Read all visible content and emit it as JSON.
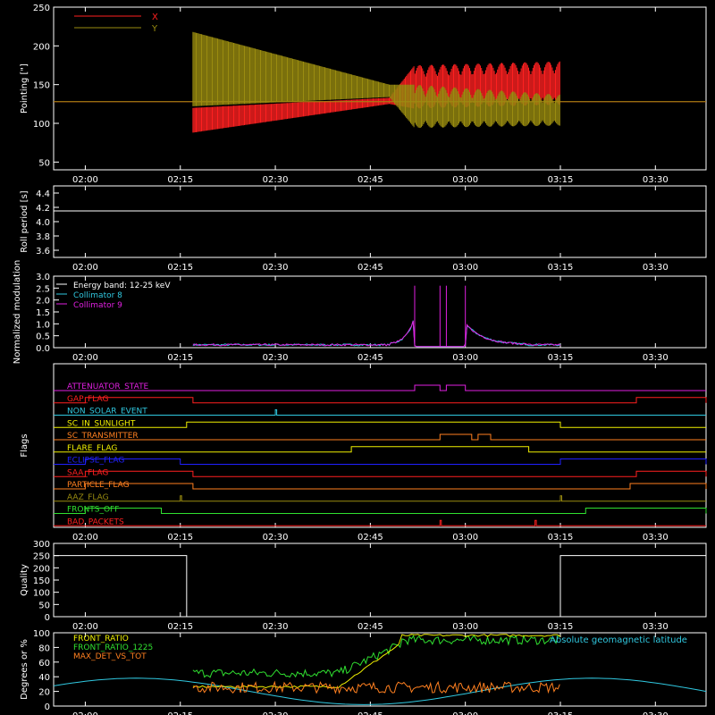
{
  "colors": {
    "bg": "#000000",
    "axis": "#ffffff",
    "red": "#ff2020",
    "olive": "#9a8c10",
    "cyan": "#30c8e0",
    "magenta": "#e020e0",
    "green": "#30e030",
    "yellow": "#f0f000",
    "orange": "#ff8020",
    "blue": "#2020ff",
    "white": "#ffffff"
  },
  "time_ticks": [
    "02:00",
    "02:15",
    "02:30",
    "02:45",
    "03:00",
    "03:15",
    "03:30"
  ],
  "chart_data": [
    {
      "id": "pointing",
      "type": "line",
      "ylabel": "Pointing [\"]",
      "ylim": [
        40,
        250
      ],
      "yticks": [
        "50",
        "100",
        "150",
        "200",
        "250"
      ],
      "legend": [
        "X",
        "Y"
      ],
      "series": [
        {
          "name": "X",
          "color": "red",
          "baseline": 128,
          "envelope": [
            [
              "02:17",
              100,
              20
            ],
            [
              "02:48",
              128,
              5
            ],
            [
              "02:52",
              140,
              35
            ],
            [
              "03:15",
              145,
              35
            ]
          ]
        },
        {
          "name": "Y",
          "color": "olive",
          "baseline": 128,
          "envelope": [
            [
              "02:17",
              158,
              60
            ],
            [
              "02:48",
              140,
              10
            ],
            [
              "02:52",
              115,
              35
            ],
            [
              "03:15",
              112,
              25
            ]
          ]
        }
      ]
    },
    {
      "id": "roll",
      "type": "line",
      "ylabel": "Roll period [s]",
      "ylim": [
        3.5,
        4.5
      ],
      "yticks": [
        "3.6",
        "3.8",
        "4.0",
        "4.2",
        "4.4"
      ],
      "series": [
        {
          "name": "",
          "color": "white",
          "value": 4.15
        }
      ]
    },
    {
      "id": "modulation",
      "type": "line",
      "ylabel": "Normalized modulation",
      "ylim": [
        0,
        3
      ],
      "yticks": [
        "0.0",
        "0.5",
        "1.0",
        "1.5",
        "2.0",
        "2.5",
        "3.0"
      ],
      "legend": [
        "Energy band: 12-25 keV",
        "Collimator 8",
        "Collimator 9"
      ],
      "series": [
        {
          "name": "Collimator 8",
          "color": "cyan"
        },
        {
          "name": "Collimator 9",
          "color": "magenta"
        }
      ]
    },
    {
      "id": "flags",
      "type": "line",
      "ylabel": "Flags",
      "flags": [
        {
          "name": "ATTENUATOR_STATE",
          "color": "magenta",
          "on": [
            [
              "02:52",
              "02:56"
            ],
            [
              "02:57",
              "03:00"
            ]
          ]
        },
        {
          "name": "GAP_FLAG",
          "color": "red",
          "on": [
            [
              "02:00",
              "02:17"
            ],
            [
              "03:27",
              "03:38"
            ]
          ]
        },
        {
          "name": "NON_SOLAR_EVENT",
          "color": "cyan",
          "on": [
            [
              "02:30",
              "02:30"
            ]
          ]
        },
        {
          "name": "SC_IN_SUNLIGHT",
          "color": "yellow",
          "on": [
            [
              "02:16",
              "03:15"
            ]
          ]
        },
        {
          "name": "SC_TRANSMITTER",
          "color": "orange",
          "on": [
            [
              "02:56",
              "03:01"
            ],
            [
              "03:02",
              "03:04"
            ]
          ]
        },
        {
          "name": "FLARE_FLAG",
          "color": "yellow",
          "on": [
            [
              "02:42",
              "03:10"
            ]
          ]
        },
        {
          "name": "ECLIPSE_FLAG",
          "color": "blue",
          "on": [
            [
              "02:00",
              "02:15"
            ],
            [
              "03:15",
              "03:38"
            ]
          ]
        },
        {
          "name": "SAA_FLAG",
          "color": "red",
          "on": [
            [
              "02:00",
              "02:17"
            ],
            [
              "03:27",
              "03:38"
            ]
          ]
        },
        {
          "name": "PARTICLE_FLAG",
          "color": "orange",
          "on": [
            [
              "02:00",
              "02:17"
            ],
            [
              "03:26",
              "03:38"
            ]
          ]
        },
        {
          "name": "AAZ_FLAG",
          "color": "olive",
          "on": [
            [
              "02:15",
              "02:15"
            ],
            [
              "03:15",
              "03:15"
            ]
          ]
        },
        {
          "name": "FRONTS_OFF",
          "color": "green",
          "on": [
            [
              "02:00",
              "02:12"
            ],
            [
              "03:19",
              "03:38"
            ]
          ]
        },
        {
          "name": "BAD_PACKETS",
          "color": "red",
          "on": [
            [
              "02:56",
              "02:56"
            ],
            [
              "03:11",
              "03:11"
            ]
          ]
        }
      ]
    },
    {
      "id": "quality",
      "type": "line",
      "ylabel": "Quality",
      "ylim": [
        0,
        300
      ],
      "yticks": [
        "0",
        "50",
        "100",
        "150",
        "200",
        "250",
        "300"
      ],
      "series": [
        {
          "name": "",
          "color": "white",
          "segments": [
            [
              "02:00",
              "02:16",
              250
            ],
            [
              "02:16",
              "03:15",
              0
            ],
            [
              "03:15",
              "03:38",
              250
            ]
          ]
        }
      ]
    },
    {
      "id": "front",
      "type": "line",
      "ylabel": "Degrees or %",
      "ylim": [
        0,
        100
      ],
      "yticks": [
        "0",
        "20",
        "40",
        "60",
        "80",
        "100"
      ],
      "legend": [
        "FRONT_RATIO",
        "FRONT_RATIO_1225",
        "MAX_DET_VS_TOT",
        "Absolute geomagnetic latitude"
      ],
      "series": [
        {
          "name": "FRONT_RATIO",
          "color": "yellow"
        },
        {
          "name": "FRONT_RATIO_1225",
          "color": "green"
        },
        {
          "name": "MAX_DET_VS_TOT",
          "color": "orange"
        },
        {
          "name": "Absolute geomagnetic latitude",
          "color": "cyan"
        }
      ]
    }
  ]
}
